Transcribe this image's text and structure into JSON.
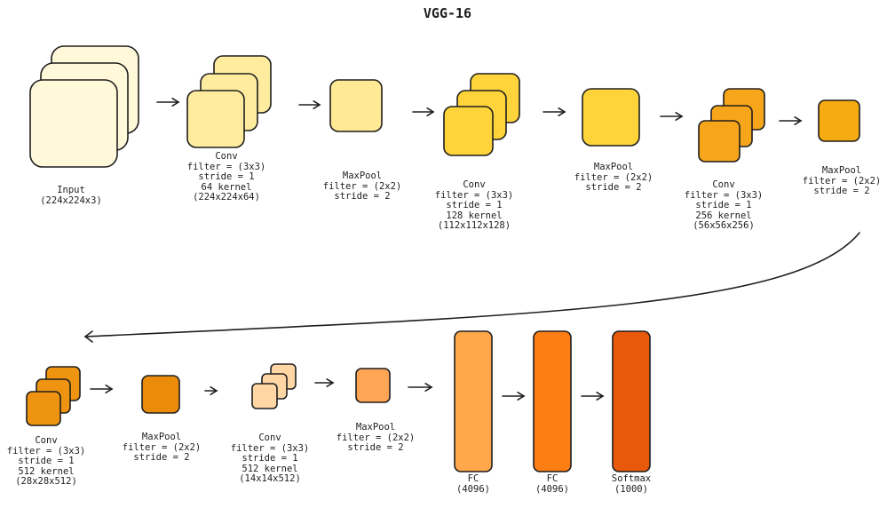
{
  "title": "VGG-16",
  "colors": {
    "input": "#fff8d9",
    "conv1": "#ffec9f",
    "pool1": "#ffe994",
    "conv2": "#ffd43b",
    "pool2": "#ffd43b",
    "conv3": "#f7a51a",
    "pool3": "#f7ab12",
    "conv4": "#ef9411",
    "pool4": "#ea8c0a",
    "conv5": "#ffd6a4",
    "pool5": "#ffa553",
    "fc1": "#ffa74a",
    "fc2": "#fd7e14",
    "softmax": "#e8590c",
    "stroke": "#1e1e1e"
  },
  "layers": [
    {
      "id": "input",
      "lines": [
        "Input",
        "(224x224x3)"
      ]
    },
    {
      "id": "conv1",
      "lines": [
        "Conv",
        "filter = (3x3)",
        "stride = 1",
        "64 kernel",
        "(224x224x64)"
      ]
    },
    {
      "id": "pool1",
      "lines": [
        "MaxPool",
        "filter = (2x2)",
        "stride = 2"
      ]
    },
    {
      "id": "conv2",
      "lines": [
        "Conv",
        "filter = (3x3)",
        "stride = 1",
        "128 kernel",
        "(112x112x128)"
      ]
    },
    {
      "id": "pool2",
      "lines": [
        "MaxPool",
        "filter = (2x2)",
        "stride = 2"
      ]
    },
    {
      "id": "conv3",
      "lines": [
        "Conv",
        "filter = (3x3)",
        "stride = 1",
        "256 kernel",
        "(56x56x256)"
      ]
    },
    {
      "id": "pool3",
      "lines": [
        "MaxPool",
        "filter = (2x2)",
        "stride = 2"
      ]
    },
    {
      "id": "conv4",
      "lines": [
        "Conv",
        "filter = (3x3)",
        "stride = 1",
        "512 kernel",
        "(28x28x512)"
      ]
    },
    {
      "id": "pool4",
      "lines": [
        "MaxPool",
        "filter = (2x2)",
        "stride = 2"
      ]
    },
    {
      "id": "conv5",
      "lines": [
        "Conv",
        "filter = (3x3)",
        "stride = 1",
        "512 kernel",
        "(14x14x512)"
      ]
    },
    {
      "id": "pool5",
      "lines": [
        "MaxPool",
        "filter = (2x2)",
        "stride = 2"
      ]
    },
    {
      "id": "fc1",
      "lines": [
        "FC",
        "(4096)"
      ]
    },
    {
      "id": "fc2",
      "lines": [
        "FC",
        "(4096)"
      ]
    },
    {
      "id": "softmax",
      "lines": [
        "Softmax",
        "(1000)"
      ]
    }
  ]
}
